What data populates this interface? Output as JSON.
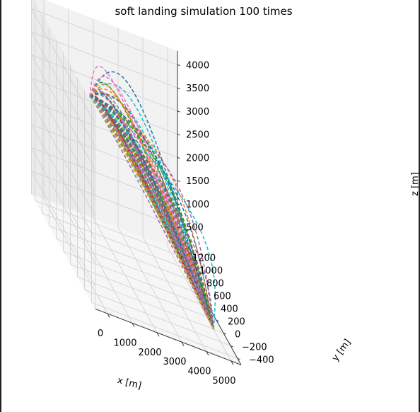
{
  "chart_data": {
    "type": "line",
    "projection": "3d",
    "title": "soft landing simulation 100 times",
    "xlabel": "x [m]",
    "ylabel": "y [m]",
    "zlabel": "z [m]",
    "xlim": [
      -500,
      5400
    ],
    "ylim": [
      -500,
      1300
    ],
    "zlim": [
      0,
      4300
    ],
    "x_ticks": [
      "0",
      "1000",
      "2000",
      "3000",
      "4000",
      "5000"
    ],
    "y_ticks": [
      "−400",
      "−200",
      "0",
      "200",
      "400",
      "600",
      "800",
      "1000",
      "1200"
    ],
    "z_ticks": [
      "500",
      "1000",
      "1500",
      "2000",
      "2500",
      "3000",
      "3500",
      "4000"
    ],
    "x_tick_values": [
      0,
      1000,
      2000,
      3000,
      4000,
      5000
    ],
    "y_tick_values": [
      -400,
      -200,
      0,
      200,
      400,
      600,
      800,
      1000,
      1200
    ],
    "z_tick_values": [
      500,
      1000,
      1500,
      2000,
      2500,
      3000,
      3500,
      4000
    ],
    "grid": true,
    "line_style": "dashed",
    "series_count": 100,
    "start_point": [
      0,
      0,
      4000
    ],
    "end_point": [
      5000,
      0,
      0
    ],
    "colors": [
      "#1f77b4",
      "#ff7f0e",
      "#2ca02c",
      "#d62728",
      "#9467bd",
      "#8c564b",
      "#e377c2",
      "#7f7f7f",
      "#bcbd22",
      "#17becf"
    ]
  }
}
